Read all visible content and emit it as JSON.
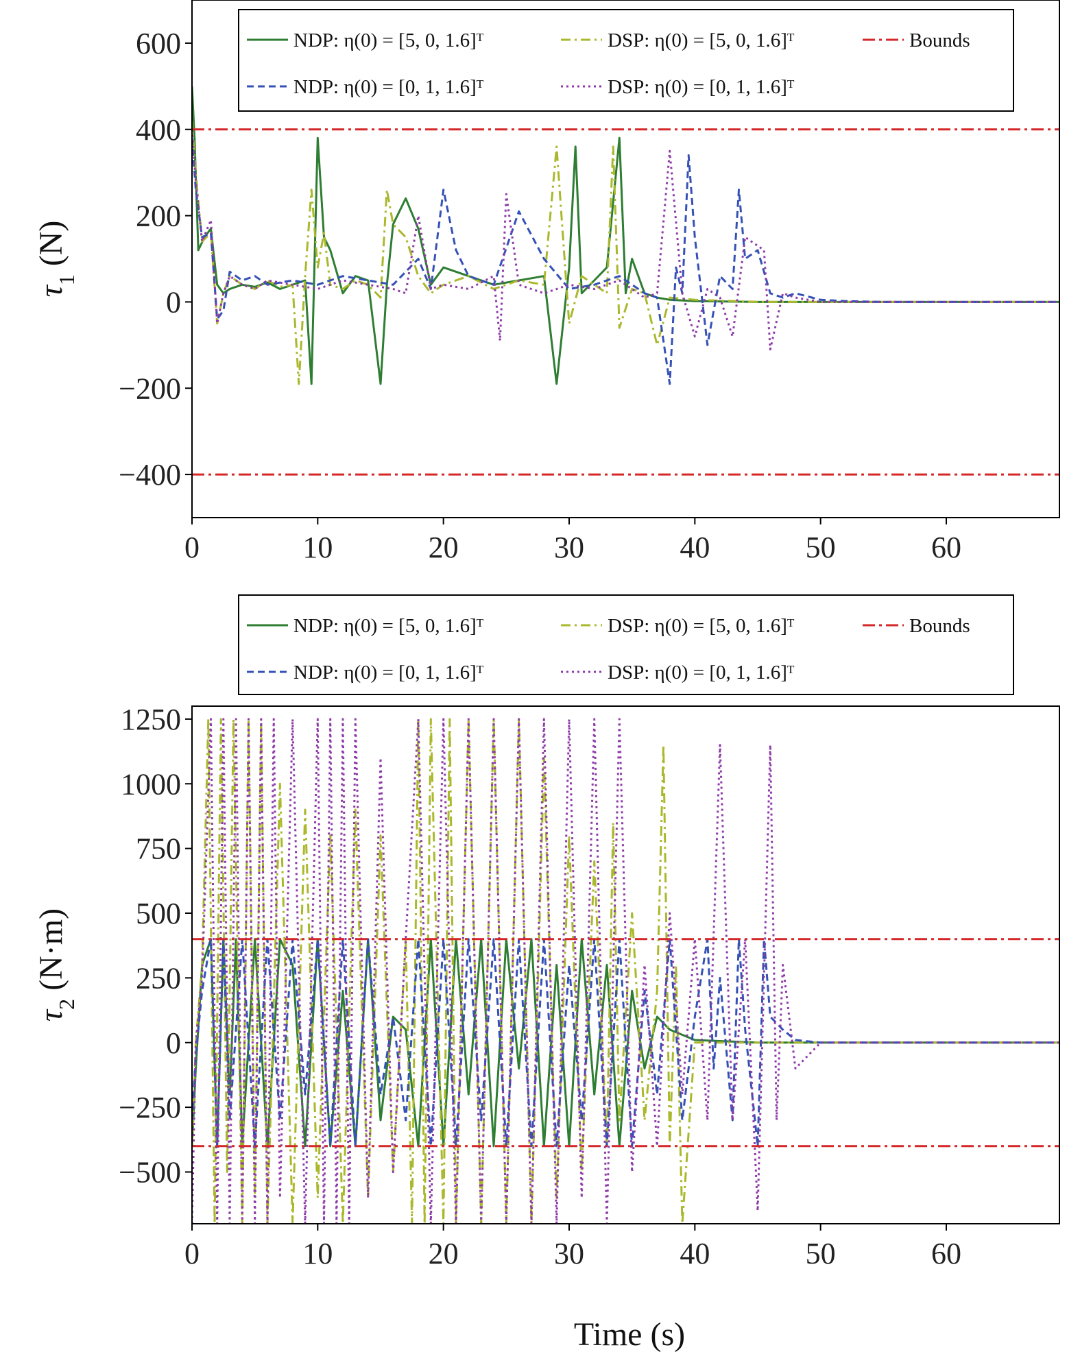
{
  "chart_data": [
    {
      "type": "line",
      "ylabel_symbol": "τ",
      "ylabel_sub": "1",
      "ylabel_unit": " (N)",
      "xlim": [
        0,
        69
      ],
      "ylim": [
        -500,
        700
      ],
      "xticks": [
        0,
        10,
        20,
        30,
        40,
        50,
        60
      ],
      "yticks": [
        -400,
        -200,
        0,
        200,
        400,
        600
      ],
      "ytick_labels": [
        "−400",
        "−200",
        "0",
        "200",
        "400",
        "600"
      ],
      "grid": false,
      "legend_placement": "top-center",
      "bounds": [
        400,
        -400
      ],
      "series": [
        {
          "name": "NDP: η(0) = [5, 0, 1.6]ᵀ",
          "color": "#2e7d32",
          "dash": "",
          "x": [
            0,
            0.2,
            0.5,
            1,
            1.5,
            2,
            2.5,
            3,
            4,
            5,
            6,
            7,
            8,
            9,
            9.5,
            10,
            10.5,
            11,
            12,
            13,
            14,
            15,
            15.5,
            16,
            17,
            18,
            19,
            20,
            22,
            24,
            26,
            28,
            29,
            30,
            30.5,
            31,
            32,
            33,
            34,
            34.5,
            35,
            36,
            37,
            38,
            40,
            45,
            50,
            55,
            69
          ],
          "y": [
            500,
            380,
            120,
            150,
            170,
            40,
            20,
            30,
            40,
            35,
            45,
            30,
            40,
            50,
            -190,
            380,
            150,
            120,
            20,
            60,
            50,
            -190,
            40,
            180,
            240,
            170,
            40,
            80,
            60,
            40,
            50,
            60,
            -190,
            80,
            360,
            20,
            50,
            80,
            380,
            20,
            100,
            20,
            10,
            5,
            2,
            0,
            0,
            0,
            0
          ]
        },
        {
          "name": "DSP: η(0) = [5, 0, 1.6]ᵀ",
          "color": "#aab82c",
          "dash": "14 6 3 6",
          "x": [
            0,
            0.3,
            0.8,
            1.5,
            2,
            2.5,
            3,
            4,
            5,
            6,
            7,
            8,
            8.5,
            9,
            9.5,
            10,
            10.5,
            11,
            12,
            13,
            14,
            15,
            15.5,
            16,
            17,
            18,
            19,
            20,
            22,
            24,
            26,
            28,
            29,
            30,
            31,
            32,
            33,
            33.5,
            34,
            35,
            36,
            37,
            38,
            40,
            45,
            50,
            69
          ],
          "y": [
            420,
            300,
            140,
            160,
            -50,
            20,
            60,
            40,
            30,
            50,
            35,
            40,
            -190,
            60,
            260,
            80,
            160,
            40,
            30,
            50,
            40,
            10,
            260,
            180,
            150,
            60,
            20,
            40,
            60,
            30,
            50,
            40,
            360,
            -50,
            60,
            40,
            20,
            360,
            -60,
            30,
            20,
            -100,
            10,
            5,
            0,
            0,
            0
          ]
        },
        {
          "name": "NDP: η(0) = [0, 1, 1.6]ᵀ",
          "color": "#3551b5",
          "dash": "10 6",
          "x": [
            0,
            0.3,
            0.8,
            1.5,
            2,
            2.5,
            3,
            4,
            5,
            6,
            8,
            10,
            12,
            14,
            16,
            18,
            19,
            20,
            21,
            22,
            24,
            26,
            28,
            30,
            32,
            34,
            36,
            37,
            38,
            38.5,
            39,
            39.5,
            40,
            41,
            42,
            43,
            43.5,
            44,
            45,
            46,
            47,
            48,
            50,
            52,
            55,
            69
          ],
          "y": [
            380,
            260,
            150,
            160,
            -40,
            -20,
            70,
            50,
            60,
            40,
            50,
            40,
            60,
            50,
            40,
            100,
            30,
            260,
            120,
            60,
            40,
            210,
            100,
            30,
            40,
            60,
            20,
            10,
            -190,
            80,
            20,
            340,
            150,
            -100,
            60,
            30,
            260,
            100,
            120,
            20,
            10,
            20,
            5,
            2,
            0,
            0
          ]
        },
        {
          "name": "DSP: η(0) = [0, 1, 1.6]ᵀ",
          "color": "#8e3aa8",
          "dash": "3 5",
          "x": [
            0,
            0.3,
            0.8,
            1.5,
            2,
            2.5,
            3,
            4,
            5,
            6,
            8,
            10,
            12,
            14,
            16,
            17,
            18,
            19,
            20,
            22,
            24,
            24.5,
            25,
            26,
            28,
            30,
            32,
            34,
            36,
            37,
            38,
            39,
            40,
            41,
            42,
            43,
            44,
            45,
            45.5,
            46,
            47,
            48,
            50,
            55,
            69
          ],
          "y": [
            400,
            280,
            140,
            190,
            -50,
            20,
            60,
            40,
            30,
            50,
            40,
            30,
            50,
            40,
            30,
            20,
            200,
            30,
            40,
            30,
            60,
            -90,
            250,
            40,
            20,
            40,
            30,
            50,
            10,
            20,
            350,
            20,
            -80,
            30,
            10,
            -80,
            150,
            130,
            120,
            -110,
            20,
            10,
            0,
            0,
            0
          ]
        }
      ]
    },
    {
      "type": "line",
      "ylabel_symbol": "τ",
      "ylabel_sub": "2",
      "ylabel_unit": " (N·m)",
      "xlabel": "Time (s)",
      "xlim": [
        0,
        69
      ],
      "ylim": [
        -700,
        1300
      ],
      "xticks": [
        0,
        10,
        20,
        30,
        40,
        50,
        60
      ],
      "yticks": [
        -500,
        -250,
        0,
        250,
        500,
        750,
        1000,
        1250
      ],
      "ytick_labels": [
        "−500",
        "−250",
        "0",
        "250",
        "500",
        "750",
        "1000",
        "1250"
      ],
      "grid": false,
      "legend_placement": "above-plot",
      "bounds": [
        400,
        -400
      ],
      "series": [
        {
          "name": "NDP: η(0) = [5, 0, 1.6]ᵀ",
          "color": "#2e7d32",
          "dash": "",
          "x": [
            0,
            0.3,
            0.8,
            1.5,
            2,
            2.5,
            3,
            3.5,
            4,
            5,
            6,
            7,
            8,
            9,
            10,
            11,
            12,
            13,
            14,
            15,
            16,
            17,
            18,
            19,
            20,
            21,
            22,
            23,
            24,
            25,
            26,
            27,
            28,
            29,
            30,
            31,
            32,
            33,
            34,
            35,
            36,
            37,
            38,
            40,
            45,
            50,
            69
          ],
          "y": [
            -400,
            -100,
            300,
            400,
            -400,
            400,
            -200,
            400,
            -400,
            400,
            -400,
            400,
            300,
            -400,
            400,
            -400,
            200,
            -400,
            400,
            -300,
            100,
            50,
            -400,
            400,
            -400,
            400,
            -200,
            400,
            -400,
            400,
            -100,
            400,
            -400,
            300,
            -400,
            400,
            -200,
            300,
            -400,
            200,
            -100,
            100,
            50,
            10,
            0,
            0,
            0
          ]
        },
        {
          "name": "DSP: η(0) = [5, 0, 1.6]ᵀ",
          "color": "#aab82c",
          "dash": "14 6 3 6",
          "x": [
            0,
            0.3,
            0.8,
            1.3,
            1.8,
            2.3,
            2.8,
            3.3,
            4,
            4.5,
            5,
            5.5,
            6,
            7,
            8,
            9,
            10,
            11,
            12,
            13,
            14,
            15,
            16,
            17,
            17.5,
            18,
            18.5,
            19,
            20,
            20.5,
            21,
            22,
            23,
            24,
            25,
            26,
            27,
            28,
            29,
            30,
            31,
            32,
            33,
            33.5,
            34,
            35,
            36,
            37,
            37.5,
            38,
            38.5,
            39,
            40,
            45,
            50,
            69
          ],
          "y": [
            -400,
            0,
            300,
            1250,
            -700,
            1250,
            -500,
            1250,
            -700,
            1250,
            -600,
            1250,
            -700,
            1000,
            -700,
            900,
            -600,
            800,
            -700,
            900,
            -600,
            800,
            -500,
            400,
            -700,
            1250,
            -700,
            1250,
            -700,
            1250,
            -700,
            1250,
            -700,
            1250,
            -700,
            1250,
            -700,
            1100,
            -600,
            800,
            -500,
            700,
            -400,
            850,
            -300,
            500,
            -300,
            200,
            1150,
            -400,
            300,
            -700,
            0,
            0,
            0,
            0
          ]
        },
        {
          "name": "NDP: η(0) = [0, 1, 1.6]ᵀ",
          "color": "#3551b5",
          "dash": "10 6",
          "x": [
            0,
            0.3,
            0.8,
            1.5,
            2,
            2.5,
            3,
            4,
            5,
            6,
            7,
            8,
            9,
            10,
            11,
            12,
            13,
            14,
            15,
            16,
            17,
            18,
            19,
            20,
            21,
            22,
            23,
            24,
            25,
            26,
            27,
            28,
            29,
            30,
            31,
            32,
            33,
            34,
            35,
            36,
            37,
            38,
            39,
            40,
            41,
            41.5,
            42,
            43,
            43.5,
            44,
            45,
            45.5,
            46,
            47,
            48,
            50,
            69
          ],
          "y": [
            -300,
            -50,
            200,
            400,
            -400,
            400,
            -300,
            400,
            -400,
            400,
            -300,
            400,
            -200,
            400,
            -400,
            400,
            -400,
            400,
            -200,
            100,
            -300,
            400,
            -400,
            400,
            -400,
            400,
            -300,
            400,
            -400,
            400,
            -400,
            400,
            -400,
            300,
            -300,
            400,
            -400,
            400,
            -400,
            200,
            -200,
            400,
            -300,
            100,
            400,
            -100,
            250,
            -300,
            400,
            50,
            -400,
            400,
            100,
            50,
            10,
            0,
            0
          ]
        },
        {
          "name": "DSP: η(0) = [0, 1, 1.6]ᵀ",
          "color": "#8e3aa8",
          "dash": "3 5",
          "x": [
            0,
            0.3,
            0.8,
            1.5,
            2,
            2.5,
            3,
            3.5,
            4,
            4.5,
            5,
            5.5,
            6,
            6.5,
            7,
            8,
            9,
            10,
            10.5,
            11,
            11.5,
            12,
            12.5,
            13,
            14,
            15,
            16,
            17,
            18,
            19,
            20,
            21,
            22,
            23,
            24,
            25,
            26,
            27,
            28,
            29,
            30,
            31,
            32,
            33,
            34,
            35,
            36,
            37,
            38,
            39,
            40,
            41,
            42,
            43,
            44,
            45,
            46,
            46.5,
            47,
            48,
            50,
            69
          ],
          "y": [
            -700,
            0,
            250,
            1250,
            -700,
            1250,
            -700,
            1250,
            -700,
            1250,
            -700,
            1250,
            -700,
            1250,
            -600,
            1250,
            -700,
            1250,
            -700,
            1250,
            -700,
            1250,
            -700,
            1250,
            -600,
            1100,
            -500,
            400,
            1250,
            -700,
            1250,
            -700,
            1250,
            -700,
            1250,
            -700,
            1250,
            -700,
            1250,
            -700,
            1250,
            -600,
            1250,
            -700,
            1250,
            -500,
            300,
            -400,
            500,
            -200,
            400,
            -300,
            1150,
            -300,
            400,
            -650,
            1150,
            -300,
            300,
            -100,
            0,
            0
          ]
        }
      ]
    }
  ]
}
